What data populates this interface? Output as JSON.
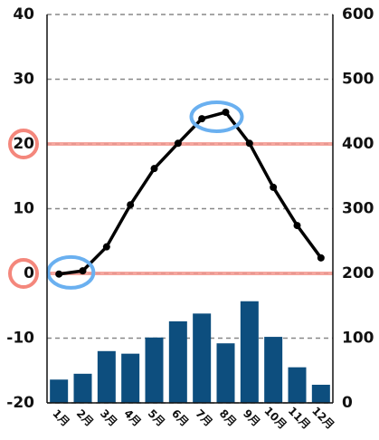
{
  "chart_data": {
    "type": "combo",
    "categories": [
      "1月",
      "2月",
      "3月",
      "4月",
      "5月",
      "6月",
      "7月",
      "8月",
      "9月",
      "10月",
      "11月",
      "12月"
    ],
    "series": [
      {
        "type": "bar",
        "axis": "y2",
        "color": "#0d4e7e",
        "values": [
          36,
          45,
          80,
          76,
          101,
          126,
          138,
          92,
          157,
          102,
          55,
          28
        ]
      },
      {
        "type": "line",
        "axis": "y",
        "color": "#000000",
        "values": [
          -0.1,
          0.4,
          4.1,
          10.6,
          16.2,
          20.1,
          23.9,
          24.9,
          20.1,
          13.3,
          7.4,
          2.4
        ]
      }
    ],
    "ylim": [
      -20,
      40
    ],
    "yticks": [
      -20,
      -10,
      0,
      10,
      20,
      30,
      40
    ],
    "y2lim": [
      0,
      600
    ],
    "y2ticks": [
      0,
      100,
      200,
      300,
      400,
      500,
      600
    ],
    "grid": true,
    "highlight_y": [
      20,
      0
    ]
  }
}
